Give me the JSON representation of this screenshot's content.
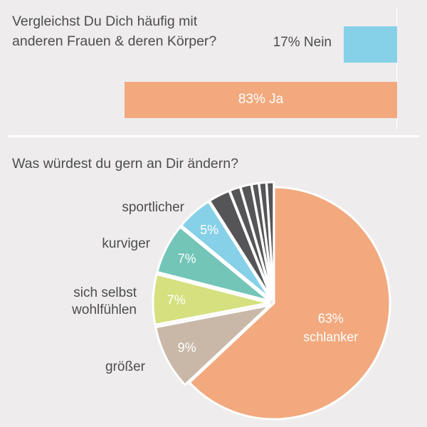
{
  "question1": "Vergleichst Du Dich häufig mit anderen Frauen & deren Körper?",
  "question2": "Was würdest du gern an Dir ändern?",
  "colors": {
    "background": "#eeeced",
    "nein": "#86d0e8",
    "ja": "#f2a97e",
    "schlanker": "#f2a97e",
    "groesser": "#c9b8a8",
    "wohlfuehlen": "#d6e07f",
    "kurviger": "#72c5b7",
    "sportlicher": "#86d0e8",
    "other": "#555456"
  },
  "chart_data": [
    {
      "type": "bar",
      "orientation": "horizontal",
      "title": "Vergleichst Du Dich häufig mit anderen Frauen & deren Körper?",
      "categories": [
        "Nein",
        "Ja"
      ],
      "values": [
        17,
        83
      ],
      "data_labels": [
        "17% Nein",
        "83% Ja"
      ],
      "unit": "%"
    },
    {
      "type": "pie",
      "title": "Was würdest du gern an Dir ändern?",
      "slices": [
        {
          "name": "schlanker",
          "value": 63,
          "label": "63%",
          "category_label": "schlanker",
          "exploded": false
        },
        {
          "name": "größer",
          "value": 9,
          "label": "9%",
          "category_label": "größer",
          "exploded": true
        },
        {
          "name": "sich selbst wohlfühlen",
          "value": 7,
          "label": "7%",
          "category_label": "sich selbst wohlfühlen",
          "exploded": true
        },
        {
          "name": "kurviger",
          "value": 7,
          "label": "7%",
          "category_label": "kurviger",
          "exploded": true
        },
        {
          "name": "sportlicher",
          "value": 5,
          "label": "5%",
          "category_label": "sportlicher",
          "exploded": true
        },
        {
          "name": "",
          "value": 3,
          "label": "",
          "exploded": true
        },
        {
          "name": "",
          "value": 1.5,
          "label": "",
          "exploded": true
        },
        {
          "name": "",
          "value": 1.5,
          "label": "",
          "exploded": true
        },
        {
          "name": "",
          "value": 1,
          "label": "",
          "exploded": true
        },
        {
          "name": "",
          "value": 1,
          "label": "",
          "exploded": true
        },
        {
          "name": "",
          "value": 1,
          "label": "",
          "exploded": true
        }
      ]
    }
  ],
  "labels": {
    "nein": "17% Nein",
    "ja": "83% Ja",
    "sportlicher": "sportlicher",
    "kurviger": "kurviger",
    "wohlfuehlen_line1": "sich selbst",
    "wohlfuehlen_line2": "wohlfühlen",
    "groesser": "größer"
  }
}
